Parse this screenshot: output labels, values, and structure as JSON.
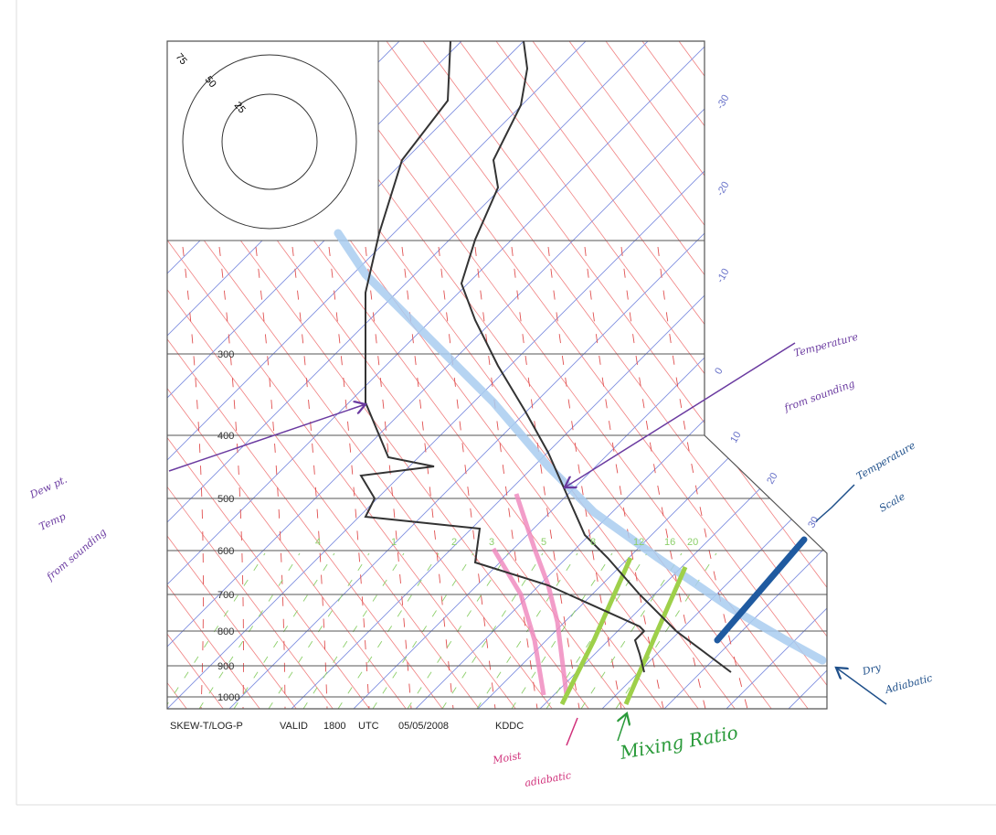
{
  "pressure_labels": [
    "300",
    "400",
    "500",
    "600",
    "700",
    "800",
    "900",
    "1000"
  ],
  "temperature_labels": [
    "-30",
    "-20",
    "-10",
    "0",
    "10",
    "20",
    "30"
  ],
  "mixing_ratio_labels": [
    "4",
    "1",
    "2",
    "3",
    "5",
    "8",
    "12",
    "16",
    "20"
  ],
  "hodograph_labels": [
    "75",
    "50",
    "25"
  ],
  "footer": {
    "title": "SKEW-T/LOG-P",
    "valid": "VALID",
    "time": "1800",
    "zone": "UTC",
    "date": "05/05/2008",
    "station": "KDDC"
  },
  "annotations": {
    "dew_point": [
      "Dew pt.",
      "Temp",
      "from sounding"
    ],
    "temperature": [
      "Temperature",
      "from sounding"
    ],
    "temperature_scale": [
      "Temperature",
      "Scale"
    ],
    "dry_adiabatic": [
      "Dry",
      "Adiabatic"
    ],
    "moist_adiabatic": [
      "Moist",
      "adiabatic"
    ],
    "mixing_ratio": [
      "Mixing Ratio"
    ]
  }
}
